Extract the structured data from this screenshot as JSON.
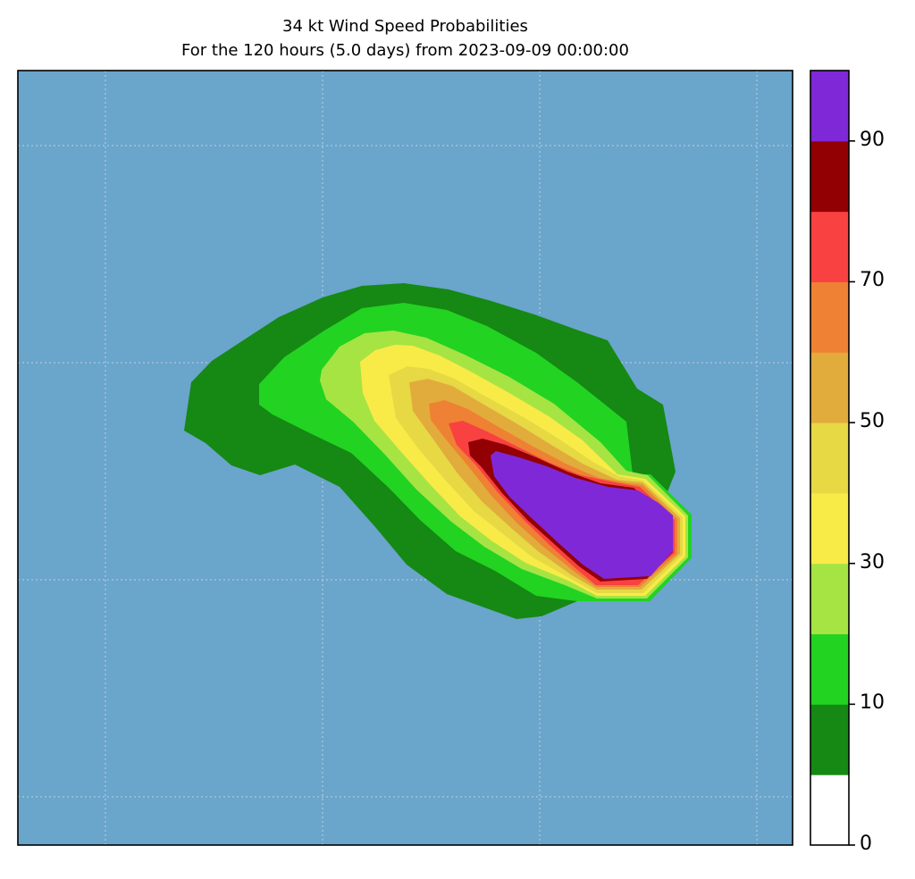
{
  "title": {
    "line1": "34 kt Wind Speed Probabilities",
    "line2": "For the 120 hours (5.0 days) from 2023-09-09 00:00:00"
  },
  "map": {
    "ocean_color": "#6aa5cb",
    "gridlines": true,
    "regions": [
      {
        "level": "5-10",
        "color": "#168814"
      },
      {
        "level": "10-20",
        "color": "#22d322"
      },
      {
        "level": "20-30",
        "color": "#a6e443"
      },
      {
        "level": "30-40",
        "color": "#f9eb47"
      },
      {
        "level": "40-50",
        "color": "#e6d944"
      },
      {
        "level": "50-60",
        "color": "#e2ac3c"
      },
      {
        "level": "60-70",
        "color": "#ee8133"
      },
      {
        "level": "70-80",
        "color": "#f94141"
      },
      {
        "level": "80-90",
        "color": "#920004"
      },
      {
        "level": "90-100",
        "color": "#7f28d8"
      }
    ]
  },
  "colorbar": {
    "bins": [
      {
        "from": 0,
        "to": 5,
        "color": "#ffffff"
      },
      {
        "from": 5,
        "to": 10,
        "color": "#168814"
      },
      {
        "from": 10,
        "to": 20,
        "color": "#22d322"
      },
      {
        "from": 20,
        "to": 30,
        "color": "#a6e443"
      },
      {
        "from": 30,
        "to": 40,
        "color": "#f9eb47"
      },
      {
        "from": 40,
        "to": 50,
        "color": "#e6d944"
      },
      {
        "from": 50,
        "to": 60,
        "color": "#e2ac3c"
      },
      {
        "from": 60,
        "to": 70,
        "color": "#ee8133"
      },
      {
        "from": 70,
        "to": 80,
        "color": "#f94141"
      },
      {
        "from": 80,
        "to": 90,
        "color": "#920004"
      },
      {
        "from": 90,
        "to": 100,
        "color": "#7f28d8"
      }
    ],
    "tick_labels": [
      "0",
      "10",
      "30",
      "50",
      "70",
      "90"
    ]
  }
}
